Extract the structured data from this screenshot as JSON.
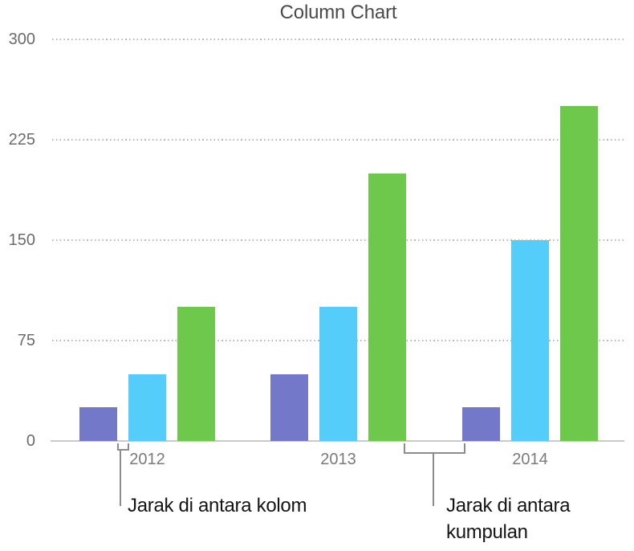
{
  "chart_data": {
    "type": "bar",
    "title": "Column Chart",
    "categories": [
      "2012",
      "2013",
      "2014"
    ],
    "series": [
      {
        "name": "purple",
        "color": "#7378C8",
        "values": [
          25,
          50,
          25
        ]
      },
      {
        "name": "blue",
        "color": "#54CDFA",
        "values": [
          50,
          100,
          150
        ]
      },
      {
        "name": "green",
        "color": "#6EC84B",
        "values": [
          100,
          200,
          250
        ]
      }
    ],
    "xlabel": "",
    "ylabel": "",
    "ylim": [
      0,
      300
    ],
    "yticks": [
      0,
      75,
      150,
      225,
      300
    ],
    "grid": "horizontal-dotted",
    "legend_position": "none"
  },
  "annotations": {
    "column_gap": {
      "label": "Jarak di antara kolom"
    },
    "group_gap": {
      "label_line1": "Jarak di antara",
      "label_line2": "kumpulan"
    }
  },
  "colors": {
    "bracket_gray": "#8c8c8c",
    "axis_line": "#cacaca",
    "axis_text": "#6b6b6b",
    "title_text": "#4a4a4a",
    "callout_text": "#141414"
  }
}
